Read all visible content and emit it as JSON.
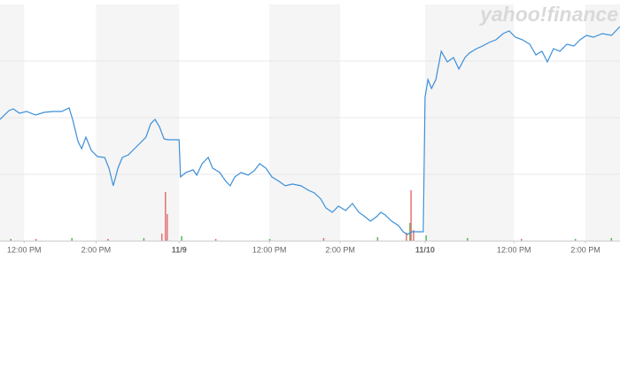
{
  "chart_data": {
    "type": "line",
    "watermark": "yahoo!finance",
    "xlim": [
      0,
      17.24
    ],
    "ylim": [
      0,
      267
    ],
    "xticks": [
      {
        "value": 0.67,
        "label": "12:00 PM"
      },
      {
        "value": 2.67,
        "label": "2:00 PM"
      },
      {
        "value": 4.98,
        "label": "11/9"
      },
      {
        "value": 7.49,
        "label": "12:00 PM"
      },
      {
        "value": 9.46,
        "label": "2:00 PM"
      },
      {
        "value": 11.82,
        "label": "11/10"
      },
      {
        "value": 14.29,
        "label": "12:00 PM"
      },
      {
        "value": 16.28,
        "label": "2:00 PM"
      }
    ],
    "series": [
      {
        "color": "#3b8fd9",
        "x": [
          0,
          0.25,
          0.37,
          0.54,
          0.74,
          0.99,
          1.23,
          1.48,
          1.72,
          1.92,
          2.02,
          2.17,
          2.27,
          2.39,
          2.54,
          2.71,
          2.91,
          3.03,
          3.15,
          3.28,
          3.4,
          3.57,
          3.74,
          3.94,
          4.06,
          4.19,
          4.31,
          4.43,
          4.56,
          4.68,
          4.98,
          5.02,
          5.17,
          5.37,
          5.47,
          5.62,
          5.79,
          5.91,
          6.11,
          6.28,
          6.4,
          6.53,
          6.7,
          6.9,
          7.07,
          7.22,
          7.39,
          7.56,
          7.76,
          7.93,
          8.13,
          8.37,
          8.57,
          8.74,
          8.92,
          9.06,
          9.24,
          9.41,
          9.61,
          9.8,
          9.98,
          10.15,
          10.3,
          10.47,
          10.59,
          10.71,
          10.89,
          11.08,
          11.21,
          11.33,
          11.45,
          11.77,
          11.82,
          11.9,
          12.0,
          12.12,
          12.27,
          12.44,
          12.61,
          12.76,
          12.93,
          13.05,
          13.25,
          13.42,
          13.6,
          13.79,
          13.99,
          14.16,
          14.33,
          14.53,
          14.73,
          14.9,
          15.07,
          15.22,
          15.39,
          15.57,
          15.76,
          15.96,
          16.13,
          16.31,
          16.5,
          16.75,
          17.0,
          17.24
        ],
        "values": [
          137,
          147,
          149,
          144,
          146,
          142,
          145,
          146,
          146,
          150,
          137,
          112,
          104,
          117,
          102,
          95,
          94,
          82,
          62,
          82,
          94,
          97,
          104,
          112,
          117,
          132,
          137,
          129,
          115,
          114,
          114,
          72,
          77,
          80,
          74,
          87,
          94,
          82,
          77,
          67,
          62,
          72,
          77,
          74,
          79,
          87,
          82,
          72,
          67,
          62,
          64,
          62,
          57,
          54,
          47,
          37,
          32,
          39,
          34,
          42,
          32,
          27,
          22,
          27,
          32,
          29,
          22,
          17,
          10,
          7,
          10,
          10,
          162,
          182,
          172,
          182,
          214,
          202,
          207,
          194,
          207,
          212,
          217,
          220,
          224,
          227,
          234,
          237,
          230,
          227,
          222,
          210,
          214,
          202,
          217,
          214,
          222,
          220,
          227,
          232,
          230,
          234,
          232,
          242
        ]
      }
    ],
    "volume": {
      "x": [
        0.3,
        1.0,
        2.0,
        3.0,
        4.0,
        4.5,
        4.6,
        4.65,
        5.05,
        6.0,
        7.5,
        9.0,
        10.5,
        11.3,
        11.4,
        11.43,
        11.5,
        11.85,
        13.0,
        14.5,
        16.0,
        17.0
      ],
      "values": [
        2,
        2,
        3,
        2,
        3,
        8,
        55,
        30,
        5,
        2,
        2,
        3,
        4,
        9,
        20,
        57,
        12,
        6,
        3,
        2,
        2,
        3
      ],
      "colors": [
        "#5cb85c",
        "#e57373",
        "#5cb85c",
        "#e57373",
        "#5cb85c",
        "#e57373",
        "#e57373",
        "#e57373",
        "#5cb85c",
        "#e57373",
        "#5cb85c",
        "#e57373",
        "#5cb85c",
        "#e57373",
        "#5cb85c",
        "#e57373",
        "#e57373",
        "#5cb85c",
        "#5cb85c",
        "#e57373",
        "#5cb85c",
        "#5cb85c"
      ]
    }
  }
}
